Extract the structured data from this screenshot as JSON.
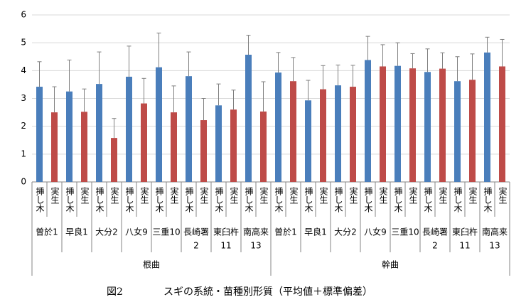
{
  "chart_data": {
    "type": "bar",
    "caption_number": "図2",
    "caption": "スギの系統・苗種別形質（平均値＋標準偏差）",
    "ylim": [
      0,
      6
    ],
    "yticks": [
      0,
      1,
      2,
      3,
      4,
      5,
      6
    ],
    "grid": true,
    "bar_colors": [
      "#4a7ebb",
      "#be4b48"
    ],
    "groups": [
      {
        "name": "根曲",
        "clones": [
          {
            "name": [
              "曽於1"
            ],
            "bars": [
              {
                "label": "挿し木",
                "value": 3.42,
                "error": 0.9
              },
              {
                "label": "実生",
                "value": 2.5,
                "error": 0.92
              }
            ]
          },
          {
            "name": [
              "早良1"
            ],
            "bars": [
              {
                "label": "挿し木",
                "value": 3.25,
                "error": 1.13
              },
              {
                "label": "実生",
                "value": 2.52,
                "error": 0.82
              }
            ]
          },
          {
            "name": [
              "大分2"
            ],
            "bars": [
              {
                "label": "挿し木",
                "value": 3.52,
                "error": 1.15
              },
              {
                "label": "実生",
                "value": 1.58,
                "error": 0.7
              }
            ]
          },
          {
            "name": [
              "八女9"
            ],
            "bars": [
              {
                "label": "挿し木",
                "value": 3.78,
                "error": 1.1
              },
              {
                "label": "実生",
                "value": 2.82,
                "error": 0.9
              }
            ]
          },
          {
            "name": [
              "三重10"
            ],
            "bars": [
              {
                "label": "挿し木",
                "value": 4.12,
                "error": 1.23
              },
              {
                "label": "実生",
                "value": 2.5,
                "error": 0.95
              }
            ]
          },
          {
            "name": [
              "長崎署",
              "2"
            ],
            "bars": [
              {
                "label": "挿し木",
                "value": 3.8,
                "error": 0.87
              },
              {
                "label": "実生",
                "value": 2.22,
                "error": 0.78
              }
            ]
          },
          {
            "name": [
              "東臼杵",
              "11"
            ],
            "bars": [
              {
                "label": "挿し木",
                "value": 2.75,
                "error": 0.77
              },
              {
                "label": "実生",
                "value": 2.6,
                "error": 0.7
              }
            ]
          },
          {
            "name": [
              "南高来",
              "13"
            ],
            "bars": [
              {
                "label": "挿し木",
                "value": 4.57,
                "error": 0.7
              },
              {
                "label": "実生",
                "value": 2.53,
                "error": 1.07
              }
            ]
          }
        ]
      },
      {
        "name": "幹曲",
        "clones": [
          {
            "name": [
              "曽於1"
            ],
            "bars": [
              {
                "label": "挿し木",
                "value": 3.93,
                "error": 0.72
              },
              {
                "label": "実生",
                "value": 3.62,
                "error": 0.85
              }
            ]
          },
          {
            "name": [
              "早良1"
            ],
            "bars": [
              {
                "label": "挿し木",
                "value": 2.93,
                "error": 0.72
              },
              {
                "label": "実生",
                "value": 3.33,
                "error": 0.85
              }
            ]
          },
          {
            "name": [
              "大分2"
            ],
            "bars": [
              {
                "label": "挿し木",
                "value": 3.47,
                "error": 0.73
              },
              {
                "label": "実生",
                "value": 3.42,
                "error": 0.77
              }
            ]
          },
          {
            "name": [
              "八女9"
            ],
            "bars": [
              {
                "label": "挿し木",
                "value": 4.38,
                "error": 0.85
              },
              {
                "label": "実生",
                "value": 4.15,
                "error": 0.78
              }
            ]
          },
          {
            "name": [
              "三重10"
            ],
            "bars": [
              {
                "label": "挿し木",
                "value": 4.17,
                "error": 0.83
              },
              {
                "label": "実生",
                "value": 4.08,
                "error": 0.53
              }
            ]
          },
          {
            "name": [
              "長崎署",
              "2"
            ],
            "bars": [
              {
                "label": "挿し木",
                "value": 3.95,
                "error": 0.83
              },
              {
                "label": "実生",
                "value": 4.07,
                "error": 0.57
              }
            ]
          },
          {
            "name": [
              "東臼杵",
              "11"
            ],
            "bars": [
              {
                "label": "挿し木",
                "value": 3.62,
                "error": 0.88
              },
              {
                "label": "実生",
                "value": 3.67,
                "error": 0.93
              }
            ]
          },
          {
            "name": [
              "南高来",
              "13"
            ],
            "bars": [
              {
                "label": "挿し木",
                "value": 4.65,
                "error": 0.55
              },
              {
                "label": "実生",
                "value": 4.15,
                "error": 0.97
              }
            ]
          }
        ]
      }
    ]
  }
}
